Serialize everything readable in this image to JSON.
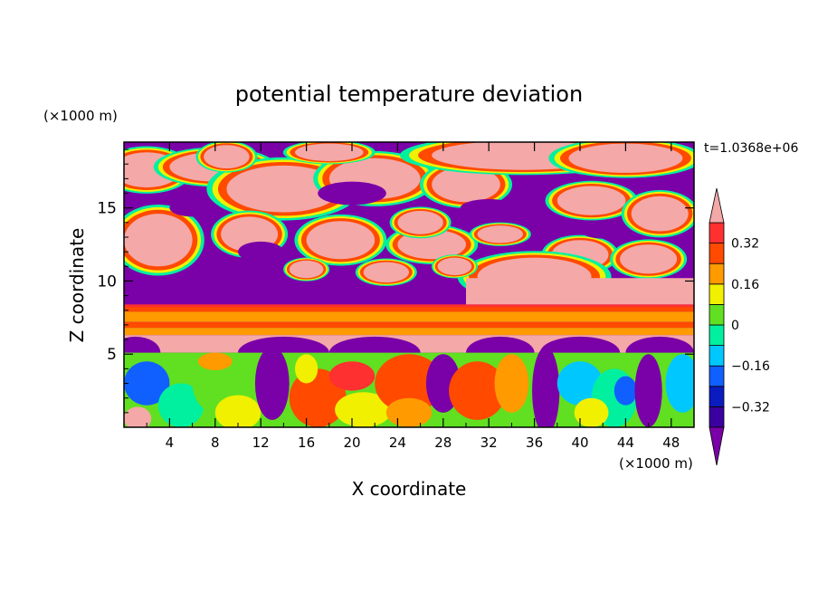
{
  "chart_data": {
    "type": "heatmap",
    "title": "potential temperature deviation",
    "xlabel": "X coordinate",
    "ylabel": "Z coordinate",
    "x_unit": "(×1000 m)",
    "y_unit": "(×1000 m)",
    "time_label": "t=1.0368e+06",
    "xlim": [
      0,
      50
    ],
    "ylim": [
      0,
      19.5
    ],
    "x_ticks": [
      4,
      8,
      12,
      16,
      20,
      24,
      28,
      32,
      36,
      40,
      44,
      48
    ],
    "y_ticks": [
      5,
      10,
      15
    ],
    "colorbar": {
      "levels": [
        -0.4,
        -0.32,
        -0.24,
        -0.16,
        -0.08,
        0,
        0.08,
        0.16,
        0.24,
        0.32,
        0.4
      ],
      "tick_labels": [
        "0.32",
        "0.16",
        "0",
        "-0.16",
        "-0.32"
      ],
      "tick_values": [
        0.32,
        0.16,
        0,
        -0.16,
        -0.32
      ],
      "colors": [
        "#7a00a8",
        "#3a00a0",
        "#0a1cc0",
        "#1060ff",
        "#00c8ff",
        "#00f0a0",
        "#60e020",
        "#f0f000",
        "#ff9a00",
        "#ff4a00",
        "#ff3030",
        "#f4a8a8"
      ],
      "extend": "both"
    }
  }
}
